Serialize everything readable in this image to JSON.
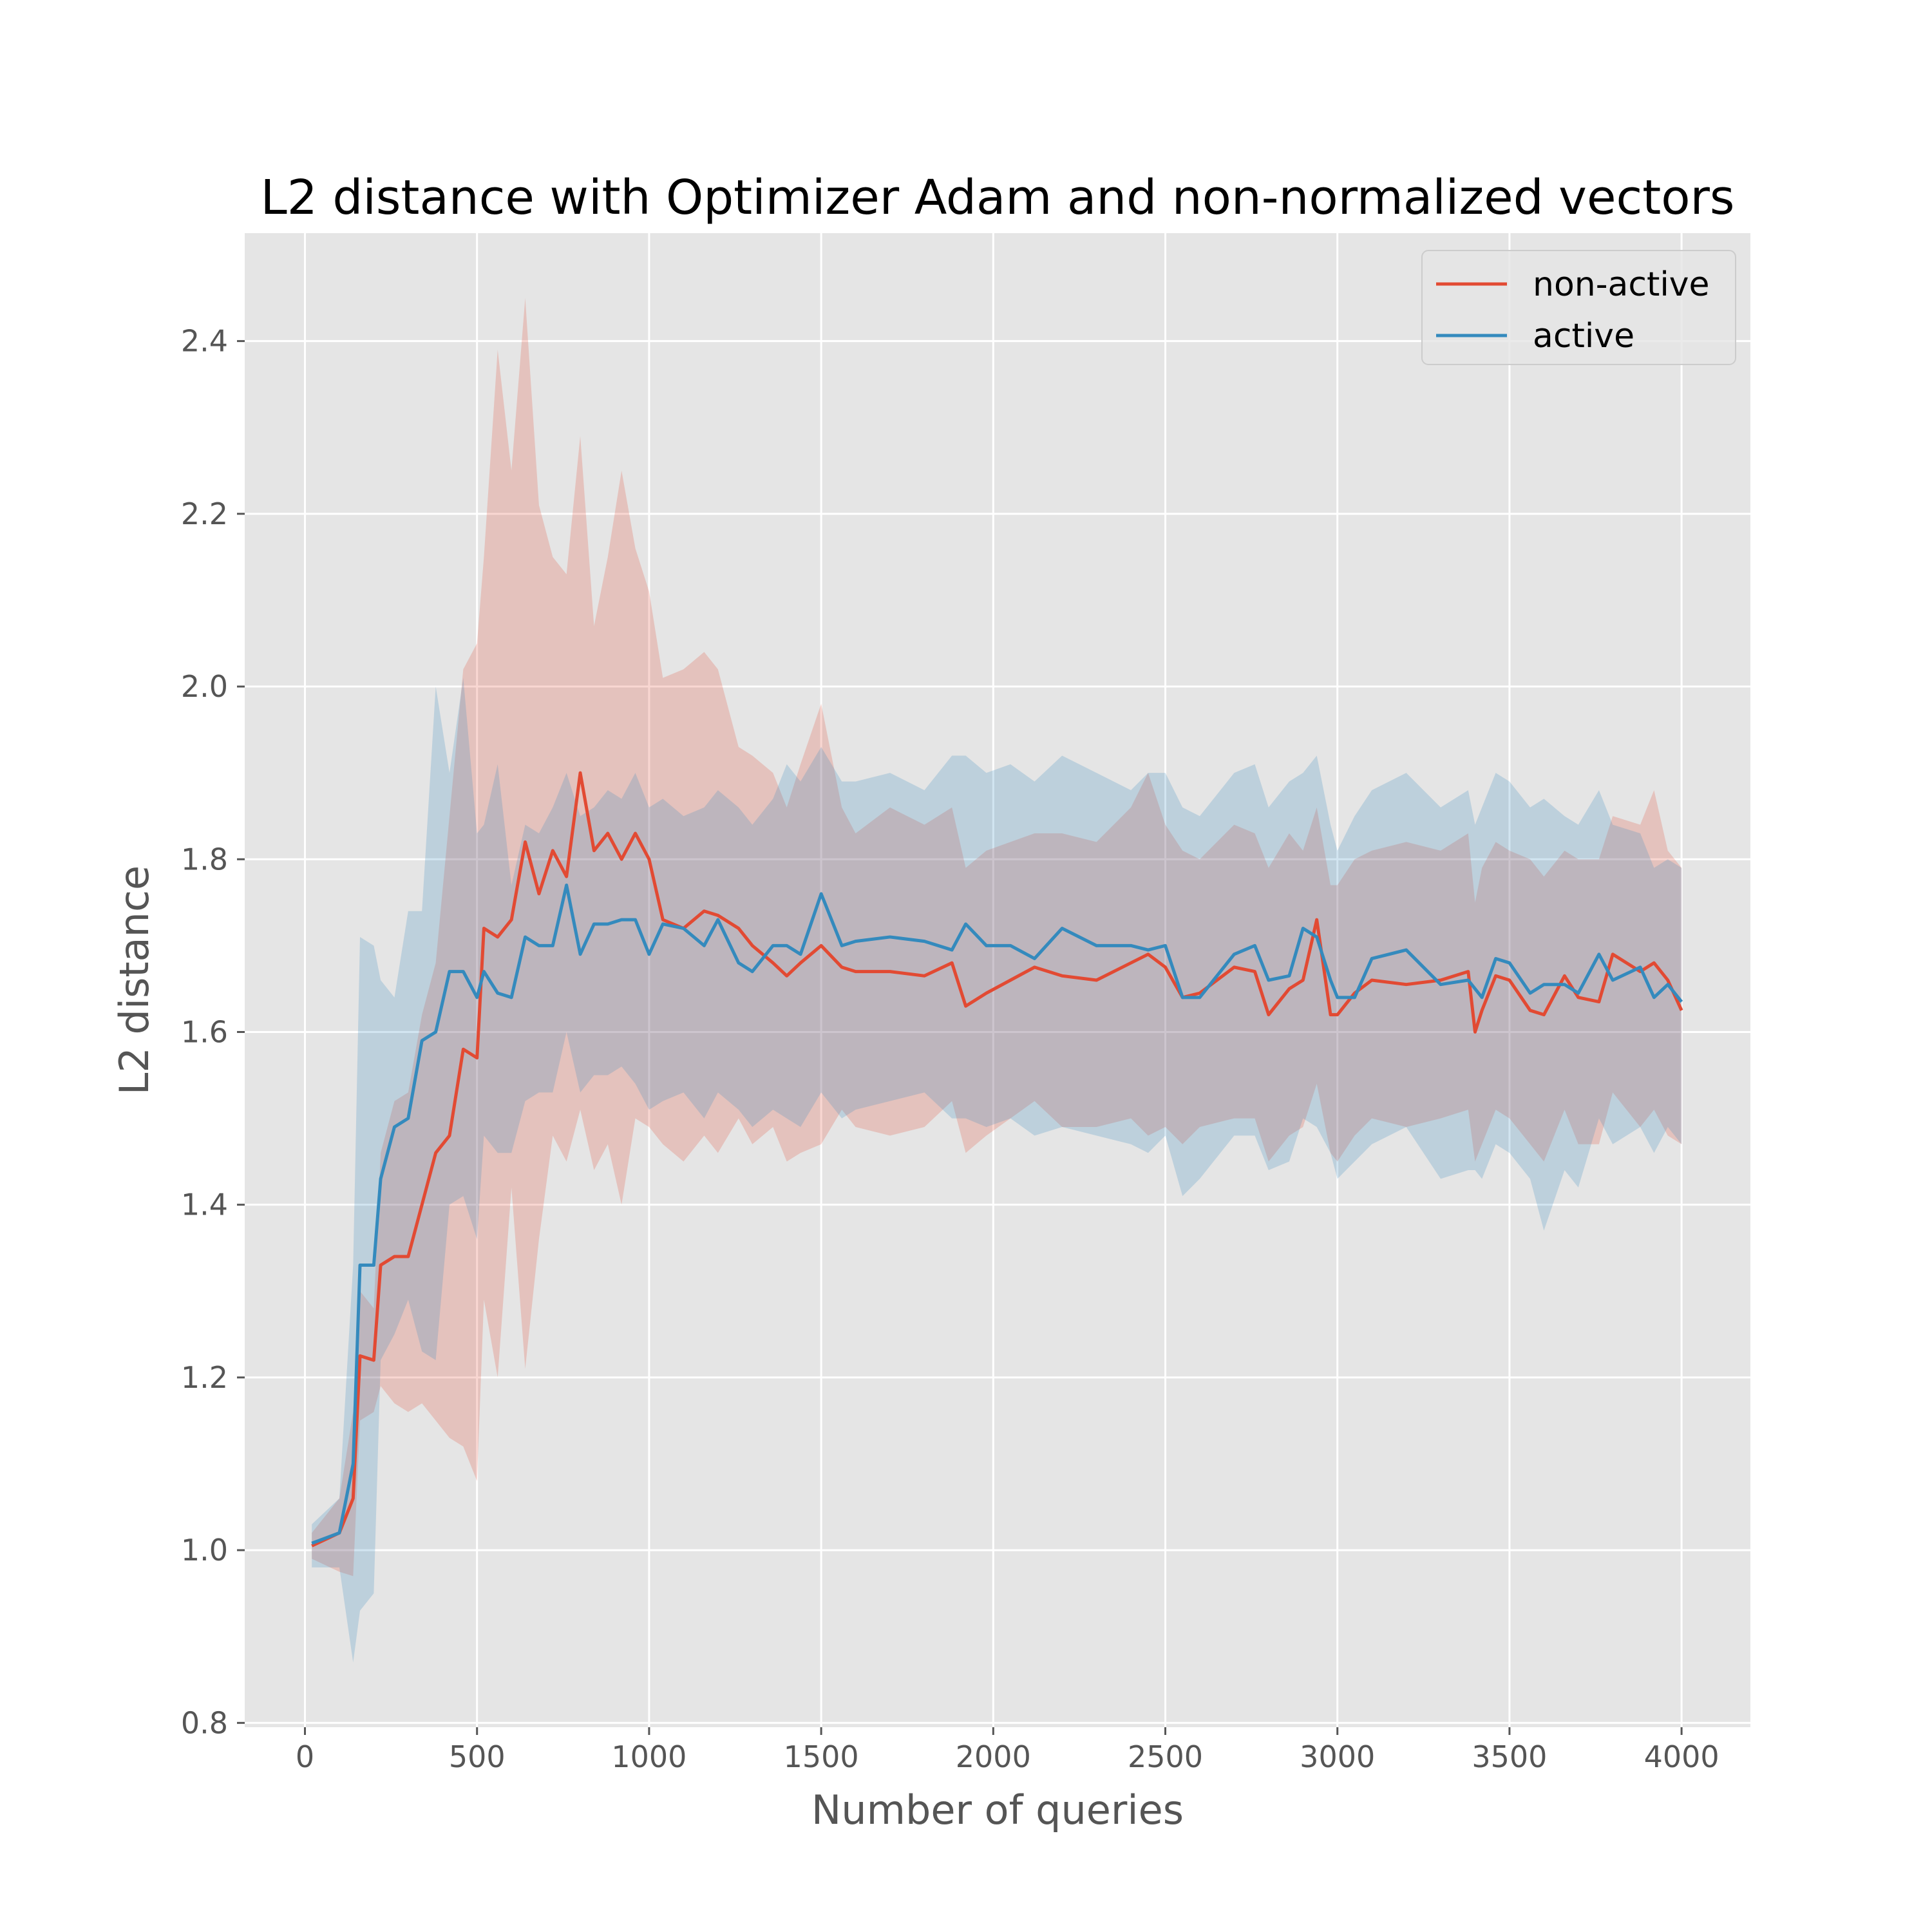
{
  "chart_data": {
    "type": "line",
    "title": "L2 distance with Optimizer Adam and non-normalized vectors",
    "xlabel": "Number of queries",
    "ylabel": "L2 distance",
    "xlim": [
      -175,
      4200
    ],
    "ylim": [
      0.795,
      2.525
    ],
    "xticks": [
      0,
      500,
      1000,
      1500,
      2000,
      2500,
      3000,
      3500,
      4000
    ],
    "yticks": [
      0.8,
      1.0,
      1.2,
      1.4,
      1.6,
      1.8,
      2.0,
      2.2,
      2.4
    ],
    "xtick_labels": [
      "0",
      "500",
      "1000",
      "1500",
      "2000",
      "2500",
      "3000",
      "3500",
      "4000"
    ],
    "ytick_labels": [
      "0.8",
      "1.0",
      "1.2",
      "1.4",
      "1.6",
      "1.8",
      "2.0",
      "2.2",
      "2.4"
    ],
    "grid": true,
    "legend_position": "top-right",
    "band_note": "shaded bands show spread around each series",
    "series": [
      {
        "name": "non-active",
        "color": "#E24A33",
        "x": [
          20,
          100,
          140,
          160,
          200,
          220,
          260,
          300,
          340,
          380,
          420,
          460,
          500,
          520,
          560,
          600,
          640,
          680,
          720,
          760,
          800,
          840,
          880,
          920,
          960,
          1000,
          1040,
          1100,
          1160,
          1200,
          1260,
          1300,
          1360,
          1400,
          1440,
          1500,
          1560,
          1600,
          1700,
          1800,
          1880,
          1920,
          1980,
          2050,
          2120,
          2200,
          2300,
          2400,
          2450,
          2500,
          2550,
          2600,
          2700,
          2760,
          2800,
          2860,
          2900,
          2940,
          2980,
          3000,
          3050,
          3100,
          3200,
          3300,
          3380,
          3400,
          3420,
          3460,
          3500,
          3560,
          3600,
          3660,
          3700,
          3760,
          3800,
          3880,
          3920,
          3960,
          4000
        ],
        "y": [
          1.005,
          1.02,
          1.06,
          1.225,
          1.22,
          1.33,
          1.34,
          1.34,
          1.4,
          1.46,
          1.48,
          1.58,
          1.57,
          1.72,
          1.71,
          1.73,
          1.82,
          1.76,
          1.81,
          1.78,
          1.9,
          1.81,
          1.83,
          1.8,
          1.83,
          1.8,
          1.73,
          1.72,
          1.74,
          1.735,
          1.72,
          1.7,
          1.68,
          1.665,
          1.68,
          1.7,
          1.675,
          1.67,
          1.67,
          1.665,
          1.68,
          1.63,
          1.645,
          1.66,
          1.675,
          1.665,
          1.66,
          1.68,
          1.69,
          1.675,
          1.64,
          1.645,
          1.675,
          1.67,
          1.62,
          1.65,
          1.66,
          1.73,
          1.62,
          1.62,
          1.645,
          1.66,
          1.655,
          1.66,
          1.67,
          1.6,
          1.625,
          1.665,
          1.66,
          1.625,
          1.62,
          1.665,
          1.64,
          1.635,
          1.69,
          1.67,
          1.68,
          1.66,
          1.625
        ],
        "band_upper": [
          1.02,
          1.06,
          1.16,
          1.3,
          1.28,
          1.46,
          1.52,
          1.53,
          1.62,
          1.68,
          1.85,
          2.02,
          2.05,
          2.15,
          2.39,
          2.25,
          2.45,
          2.21,
          2.15,
          2.13,
          2.29,
          2.07,
          2.15,
          2.25,
          2.16,
          2.11,
          2.01,
          2.02,
          2.04,
          2.02,
          1.93,
          1.92,
          1.9,
          1.86,
          1.91,
          1.98,
          1.86,
          1.83,
          1.86,
          1.84,
          1.86,
          1.79,
          1.81,
          1.82,
          1.83,
          1.83,
          1.82,
          1.86,
          1.9,
          1.84,
          1.81,
          1.8,
          1.84,
          1.83,
          1.79,
          1.83,
          1.81,
          1.86,
          1.77,
          1.77,
          1.8,
          1.81,
          1.82,
          1.81,
          1.83,
          1.75,
          1.79,
          1.82,
          1.81,
          1.8,
          1.78,
          1.81,
          1.8,
          1.8,
          1.85,
          1.84,
          1.88,
          1.81,
          1.79
        ],
        "band_lower": [
          0.99,
          0.975,
          0.97,
          1.15,
          1.16,
          1.19,
          1.17,
          1.16,
          1.17,
          1.15,
          1.13,
          1.12,
          1.08,
          1.29,
          1.2,
          1.42,
          1.21,
          1.36,
          1.48,
          1.45,
          1.51,
          1.44,
          1.47,
          1.4,
          1.5,
          1.49,
          1.47,
          1.45,
          1.48,
          1.46,
          1.5,
          1.47,
          1.49,
          1.45,
          1.46,
          1.47,
          1.51,
          1.49,
          1.48,
          1.49,
          1.52,
          1.46,
          1.48,
          1.5,
          1.52,
          1.49,
          1.49,
          1.5,
          1.48,
          1.49,
          1.47,
          1.49,
          1.5,
          1.5,
          1.45,
          1.48,
          1.49,
          1.54,
          1.46,
          1.45,
          1.48,
          1.5,
          1.49,
          1.5,
          1.51,
          1.45,
          1.47,
          1.51,
          1.5,
          1.47,
          1.45,
          1.51,
          1.47,
          1.47,
          1.53,
          1.49,
          1.51,
          1.48,
          1.47
        ]
      },
      {
        "name": "active",
        "color": "#348ABD",
        "x": [
          20,
          100,
          140,
          160,
          200,
          220,
          260,
          300,
          340,
          380,
          420,
          460,
          500,
          520,
          560,
          600,
          640,
          680,
          720,
          760,
          800,
          840,
          880,
          920,
          960,
          1000,
          1040,
          1100,
          1160,
          1200,
          1260,
          1300,
          1360,
          1400,
          1440,
          1500,
          1560,
          1600,
          1700,
          1800,
          1880,
          1920,
          1980,
          2050,
          2120,
          2200,
          2300,
          2400,
          2450,
          2500,
          2550,
          2600,
          2700,
          2760,
          2800,
          2860,
          2900,
          2940,
          2980,
          3000,
          3050,
          3100,
          3200,
          3300,
          3380,
          3400,
          3420,
          3460,
          3500,
          3560,
          3600,
          3660,
          3700,
          3760,
          3800,
          3880,
          3920,
          3960,
          4000
        ],
        "y": [
          1.008,
          1.02,
          1.1,
          1.33,
          1.33,
          1.43,
          1.49,
          1.5,
          1.59,
          1.6,
          1.67,
          1.67,
          1.64,
          1.67,
          1.645,
          1.64,
          1.71,
          1.7,
          1.7,
          1.77,
          1.69,
          1.725,
          1.725,
          1.73,
          1.73,
          1.69,
          1.725,
          1.72,
          1.7,
          1.73,
          1.68,
          1.67,
          1.7,
          1.7,
          1.69,
          1.76,
          1.7,
          1.705,
          1.71,
          1.705,
          1.695,
          1.725,
          1.7,
          1.7,
          1.685,
          1.72,
          1.7,
          1.7,
          1.695,
          1.7,
          1.64,
          1.64,
          1.69,
          1.7,
          1.66,
          1.665,
          1.72,
          1.71,
          1.66,
          1.64,
          1.64,
          1.685,
          1.695,
          1.655,
          1.66,
          1.65,
          1.64,
          1.685,
          1.68,
          1.645,
          1.655,
          1.655,
          1.645,
          1.69,
          1.66,
          1.675,
          1.64,
          1.655,
          1.635
        ],
        "band_upper": [
          1.03,
          1.06,
          1.33,
          1.71,
          1.7,
          1.66,
          1.64,
          1.74,
          1.74,
          2.0,
          1.9,
          2.01,
          1.83,
          1.84,
          1.91,
          1.77,
          1.84,
          1.83,
          1.86,
          1.9,
          1.85,
          1.86,
          1.88,
          1.87,
          1.9,
          1.86,
          1.87,
          1.85,
          1.86,
          1.88,
          1.86,
          1.84,
          1.87,
          1.91,
          1.89,
          1.93,
          1.89,
          1.89,
          1.9,
          1.88,
          1.92,
          1.92,
          1.9,
          1.91,
          1.89,
          1.92,
          1.9,
          1.88,
          1.9,
          1.9,
          1.86,
          1.85,
          1.9,
          1.91,
          1.86,
          1.89,
          1.9,
          1.92,
          1.84,
          1.81,
          1.85,
          1.88,
          1.9,
          1.86,
          1.88,
          1.84,
          1.86,
          1.9,
          1.89,
          1.86,
          1.87,
          1.85,
          1.84,
          1.88,
          1.84,
          1.83,
          1.79,
          1.8,
          1.79
        ],
        "band_lower": [
          0.98,
          0.98,
          0.87,
          0.93,
          0.95,
          1.22,
          1.25,
          1.29,
          1.23,
          1.22,
          1.4,
          1.41,
          1.36,
          1.48,
          1.46,
          1.46,
          1.52,
          1.53,
          1.53,
          1.6,
          1.53,
          1.55,
          1.55,
          1.56,
          1.54,
          1.51,
          1.52,
          1.53,
          1.5,
          1.53,
          1.51,
          1.49,
          1.51,
          1.5,
          1.49,
          1.53,
          1.5,
          1.51,
          1.52,
          1.53,
          1.5,
          1.5,
          1.49,
          1.5,
          1.48,
          1.49,
          1.48,
          1.47,
          1.46,
          1.48,
          1.41,
          1.43,
          1.48,
          1.48,
          1.44,
          1.45,
          1.5,
          1.49,
          1.46,
          1.43,
          1.45,
          1.47,
          1.49,
          1.43,
          1.44,
          1.44,
          1.43,
          1.47,
          1.46,
          1.43,
          1.37,
          1.44,
          1.42,
          1.5,
          1.47,
          1.49,
          1.46,
          1.49,
          1.47
        ]
      }
    ]
  }
}
